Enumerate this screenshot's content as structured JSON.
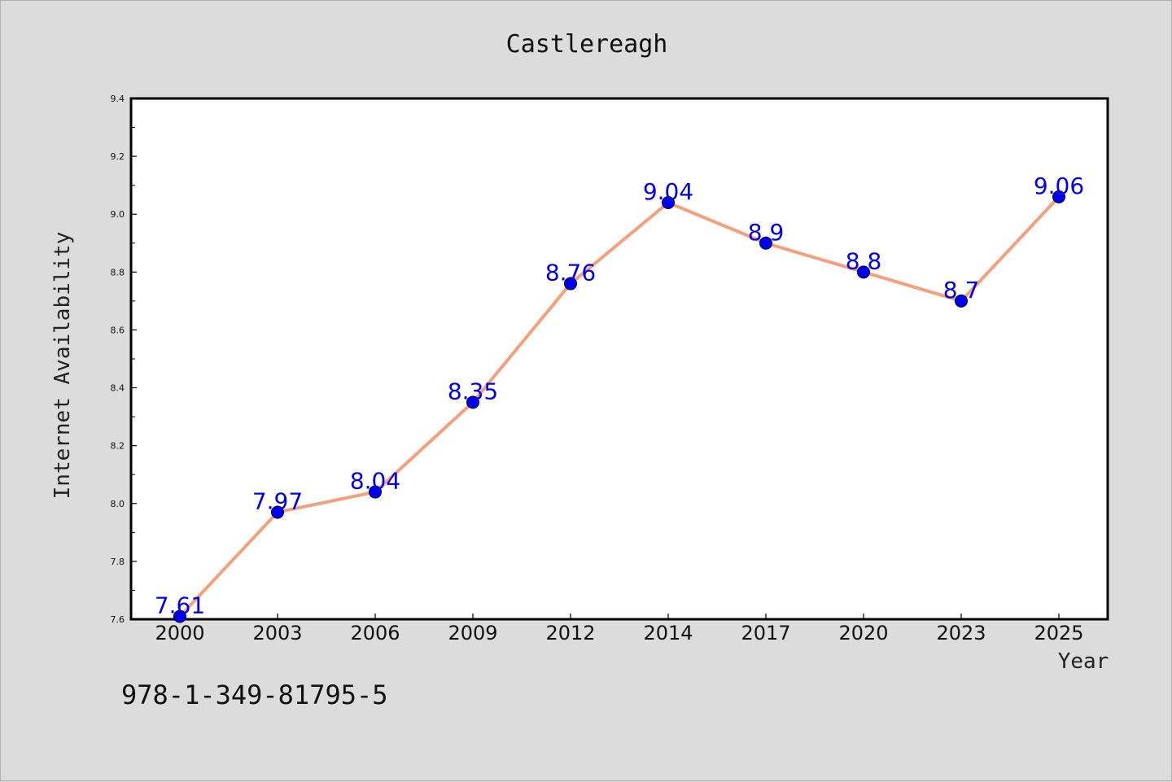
{
  "chart_data": {
    "type": "line",
    "title": "Castlereagh",
    "xlabel": "Year",
    "ylabel": "Internet Availability",
    "categories": [
      "2000",
      "2003",
      "2006",
      "2009",
      "2012",
      "2014",
      "2017",
      "2020",
      "2023",
      "2025"
    ],
    "series": [
      {
        "values": [
          7.61,
          7.97,
          8.04,
          8.35,
          8.76,
          9.04,
          8.9,
          8.8,
          8.7,
          9.06
        ],
        "line_color": "#f4a07c",
        "marker_color": "#0000ee"
      }
    ],
    "data_labels": [
      "7.61",
      "7.97",
      "8.04",
      "8.35",
      "8.76",
      "9.04",
      "8.9",
      "8.8",
      "8.7",
      "9.06"
    ],
    "yticks": [
      "7.6",
      "7.8",
      "8.0",
      "8.2",
      "8.4",
      "8.6",
      "8.8",
      "9.0",
      "9.2",
      "9.4"
    ],
    "ylim": [
      7.6,
      9.4
    ],
    "grid": false,
    "legend": "none",
    "data_label_color": "#0000ee"
  },
  "caption": "978-1-349-81795-5",
  "colors": {
    "background": "#dcdcdc",
    "plot_background": "#ffffff",
    "axis": "#000000"
  }
}
